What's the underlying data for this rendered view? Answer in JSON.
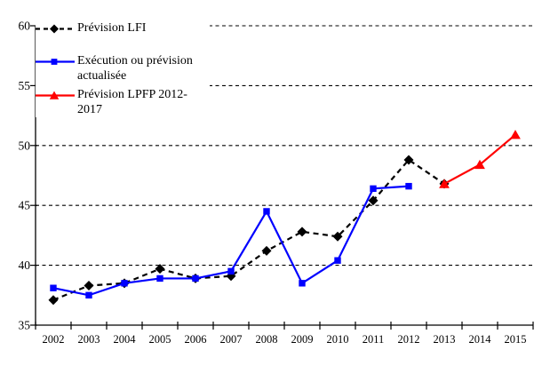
{
  "chart_data": {
    "type": "line",
    "title": "",
    "xlabel": "",
    "ylabel": "",
    "categories": [
      "2002",
      "2003",
      "2004",
      "2005",
      "2006",
      "2007",
      "2008",
      "2009",
      "2010",
      "2011",
      "2012",
      "2013",
      "2014",
      "2015"
    ],
    "ylim": [
      35,
      60
    ],
    "yticks": [
      35,
      40,
      45,
      50,
      55,
      60
    ],
    "grid": "horizontal-dashed",
    "legend_position": "top-left-overlay",
    "series": [
      {
        "name": "Prévision LFI",
        "color": "#000000",
        "line_style": "dashed",
        "marker": "diamond",
        "values": [
          37.1,
          38.3,
          38.5,
          39.7,
          38.9,
          39.1,
          41.2,
          42.8,
          42.4,
          45.4,
          48.8,
          46.8,
          null,
          null
        ]
      },
      {
        "name": "Exécution ou prévision actualisée",
        "color": "#0000ff",
        "line_style": "solid",
        "marker": "square",
        "values": [
          38.1,
          37.5,
          38.5,
          38.9,
          38.9,
          39.5,
          44.5,
          38.5,
          40.4,
          46.4,
          46.6,
          null,
          null,
          null
        ]
      },
      {
        "name": "Prévision LPFP 2012-2017",
        "color": "#ff0000",
        "line_style": "solid",
        "marker": "triangle",
        "values": [
          null,
          null,
          null,
          null,
          null,
          null,
          null,
          null,
          null,
          null,
          null,
          46.8,
          48.4,
          50.9
        ]
      }
    ]
  },
  "colors": {
    "axis": "#000000",
    "grid": "#000000",
    "background": "#ffffff"
  }
}
